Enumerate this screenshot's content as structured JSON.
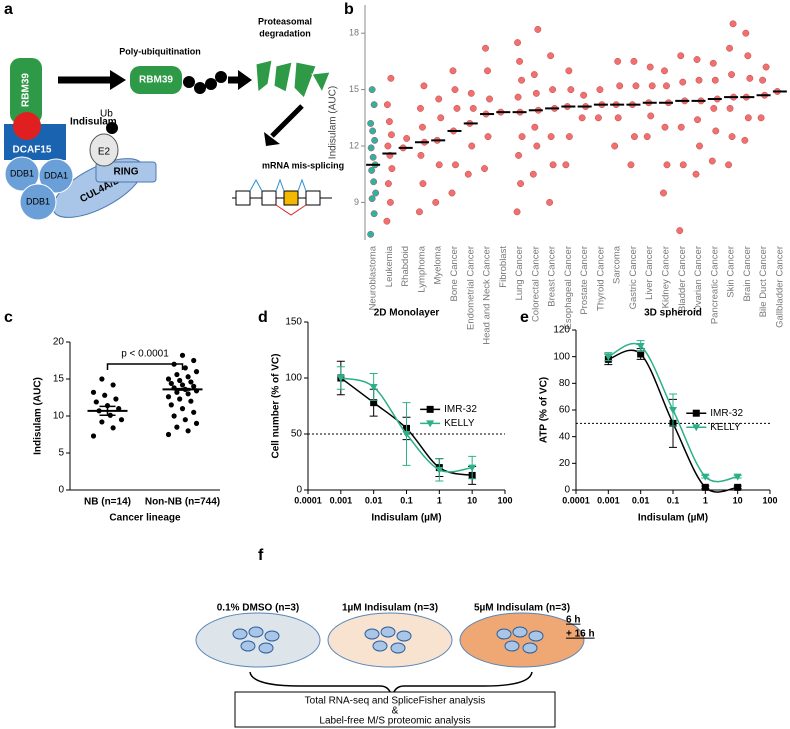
{
  "panel_labels": [
    "a",
    "b",
    "c",
    "d",
    "e",
    "f"
  ],
  "diagram_a": {
    "texts": [
      "RBM39",
      "Indisulam",
      "DCAF15",
      "DDB1",
      "DDA1",
      "DDB1",
      "CUL4A/B",
      "Ub",
      "E2",
      "RING",
      "Poly-ubiquitination",
      "RBM39",
      "Proteasomal",
      "degradation",
      "mRNA mis-splicing"
    ]
  },
  "chart_data": [
    {
      "type": "strip",
      "ylabel": "Indisulam (AUC)",
      "ylim": [
        7,
        19.5
      ],
      "yticks": [
        9,
        12,
        15,
        18
      ],
      "categories": [
        "Neuroblastoma",
        "Leukemia",
        "Rhabdoid",
        "Lymphoma",
        "Myeloma",
        "Bone Cancer",
        "Endometrial Cancer",
        "Head and Neck Cancer",
        "Fibroblast",
        "Lung Cancer",
        "Colorectal Cancer",
        "Breast Cancer",
        "Esophageal Cancer",
        "Prostate Cancer",
        "Thyroid Cancer",
        "Sarcoma",
        "Gastric Cancer",
        "Liver Cancer",
        "Kidney Cancer",
        "Bladder Cancer",
        "Ovarian Cancer",
        "Pancreatic Cancer",
        "Skin Cancer",
        "Brain Cancer",
        "Bile Duct Cancer",
        "Gallbladder Cancer"
      ],
      "values": [
        11,
        11.6,
        11.9,
        12.2,
        12.3,
        12.8,
        13.2,
        13.7,
        13.8,
        13.8,
        13.9,
        14,
        14.1,
        14.1,
        14.2,
        14.2,
        14.2,
        14.3,
        14.3,
        14.4,
        14.4,
        14.5,
        14.6,
        14.6,
        14.7,
        14.9
      ],
      "colors": [
        "#2bb3a3",
        "#f07070",
        "#f07070",
        "#f07070",
        "#f07070",
        "#f07070",
        "#f07070",
        "#f07070",
        "#f07070",
        "#f07070",
        "#f07070",
        "#f07070",
        "#f07070",
        "#f07070",
        "#f07070",
        "#f07070",
        "#f07070",
        "#f07070",
        "#f07070",
        "#f07070",
        "#f07070",
        "#f07070",
        "#f07070",
        "#f07070",
        "#f07070",
        "#f07070"
      ],
      "points": [
        [
          7.3,
          8.4,
          9.2,
          9.5,
          10.1,
          10.7,
          11,
          11.4,
          11.9,
          12.3,
          12.8,
          13.2,
          14.2,
          15
        ],
        [
          8,
          9,
          10,
          10.8,
          11.5,
          12,
          12.6,
          13.3,
          14.2,
          15.6
        ],
        [
          11.9,
          12.4
        ],
        [
          8.5,
          10,
          11.5,
          12.2,
          13,
          14,
          15.2
        ],
        [
          9,
          11,
          12.3,
          13.5,
          14.5
        ],
        [
          9.5,
          11,
          12.8,
          14,
          15,
          16
        ],
        [
          10.5,
          12,
          13.2,
          14,
          14.8
        ],
        [
          10.8,
          12.5,
          13.7,
          14.5,
          16,
          17.2
        ],
        [
          13.8
        ],
        [
          8.5,
          10,
          11.5,
          12.5,
          13.8,
          14.6,
          15.5,
          16.5,
          17.5
        ],
        [
          10.5,
          12,
          13,
          13.9,
          14.8,
          15.8,
          18.2
        ],
        [
          9,
          11,
          12.5,
          14,
          15,
          16.8
        ],
        [
          11,
          12.5,
          14.1,
          15,
          16
        ],
        [
          13.5,
          14.1,
          14.7
        ],
        [
          13.5,
          14.2,
          15
        ],
        [
          12,
          13.5,
          14.2,
          15.2,
          16.5
        ],
        [
          11,
          12.5,
          14.2,
          15.2,
          16.5
        ],
        [
          12.5,
          13.6,
          14.3,
          15.2,
          16.2
        ],
        [
          9.5,
          11,
          13,
          14.3,
          15.2,
          16
        ],
        [
          7.5,
          11,
          13,
          14.4,
          15.4,
          16.8
        ],
        [
          10.5,
          12,
          13.4,
          14.4,
          15.5,
          16.6
        ],
        [
          11.2,
          12.8,
          14,
          14.5,
          15.5,
          16.4
        ],
        [
          11,
          12.5,
          14,
          14.6,
          15.8,
          17.2,
          18.5
        ],
        [
          12.3,
          13.5,
          14.6,
          15.6,
          16.8,
          18
        ],
        [
          13.5,
          14.7,
          15.5,
          16.2
        ],
        [
          14.9
        ]
      ]
    },
    {
      "type": "strip",
      "ylabel": "Indisulam (AUC)",
      "xlabel": "Cancer lineage",
      "annotation": "p < 0.0001",
      "ylim": [
        0,
        20
      ],
      "yticks": [
        0,
        5,
        10,
        15,
        20
      ],
      "categories": [
        "NB (n=14)",
        "Non-NB (n=744)"
      ],
      "values": [
        10.7,
        13.6
      ],
      "errors": [
        0.6,
        0.1
      ],
      "color": "#000000",
      "points": [
        [
          7.3,
          8.4,
          9.2,
          9.5,
          10.1,
          10.7,
          11,
          11.4,
          11.9,
          12.3,
          12.8,
          13.2,
          14.2,
          15
        ],
        [
          7.5,
          8,
          8.5,
          9,
          9.5,
          10,
          10.5,
          11,
          11.5,
          12,
          12.3,
          12.6,
          13,
          13.2,
          13.4,
          13.6,
          13.8,
          14,
          14.2,
          14.4,
          14.6,
          14.8,
          15,
          15.3,
          15.6,
          16,
          16.5,
          17,
          17.5,
          18.2
        ]
      ]
    },
    {
      "type": "dose",
      "title": "2D Monolayer",
      "ylabel": "Cell number (% of VC)",
      "xlabel": "Indisulam (µM)",
      "xscale": "log",
      "xlim": [
        0.0001,
        100
      ],
      "xticks": [
        0.0001,
        0.001,
        0.01,
        0.1,
        1,
        10,
        100
      ],
      "ylim": [
        0,
        150
      ],
      "yticks": [
        0,
        50,
        100,
        150
      ],
      "reference_line": 50,
      "x": [
        0.001,
        0.01,
        0.1,
        1,
        10
      ],
      "series": [
        {
          "name": "IMR-32",
          "color": "#000000",
          "marker": "square",
          "values": [
            100,
            78,
            55,
            20,
            13
          ],
          "errors": [
            15,
            12,
            10,
            8,
            8
          ]
        },
        {
          "name": "KELLY",
          "color": "#2bb08a",
          "marker": "triangle",
          "values": [
            100,
            92,
            50,
            18,
            20
          ],
          "errors": [
            10,
            12,
            28,
            10,
            10
          ]
        }
      ]
    },
    {
      "type": "dose",
      "title": "3D spheroid",
      "ylabel": "ATP (% of VC)",
      "xlabel": "Indisulam (µM)",
      "xscale": "log",
      "xlim": [
        0.0001,
        100
      ],
      "xticks": [
        0.0001,
        0.001,
        0.01,
        0.1,
        1,
        10,
        100
      ],
      "ylim": [
        0,
        120
      ],
      "yticks": [
        0,
        20,
        40,
        60,
        80,
        100,
        120
      ],
      "reference_line": 50,
      "x": [
        0.001,
        0.01,
        0.1,
        1,
        10
      ],
      "series": [
        {
          "name": "IMR-32",
          "color": "#000000",
          "marker": "square",
          "values": [
            98,
            102,
            50,
            2,
            2
          ],
          "errors": [
            4,
            4,
            18,
            1,
            1
          ]
        },
        {
          "name": "KELLY",
          "color": "#2bb08a",
          "marker": "triangle",
          "values": [
            100,
            108,
            60,
            10,
            10
          ],
          "errors": [
            3,
            4,
            12,
            1,
            1
          ]
        }
      ]
    }
  ],
  "diagram_f": {
    "conditions": [
      "0.1% DMSO (n=3)",
      "1µM Indisulam (n=3)",
      "5µM Indisulam (n=3)"
    ],
    "times": [
      "6 h",
      "+ 16 h"
    ],
    "output": [
      "Total RNA-seq and SpliceFisher analysis",
      "&",
      "Label-free M/S proteomic analysis"
    ]
  }
}
